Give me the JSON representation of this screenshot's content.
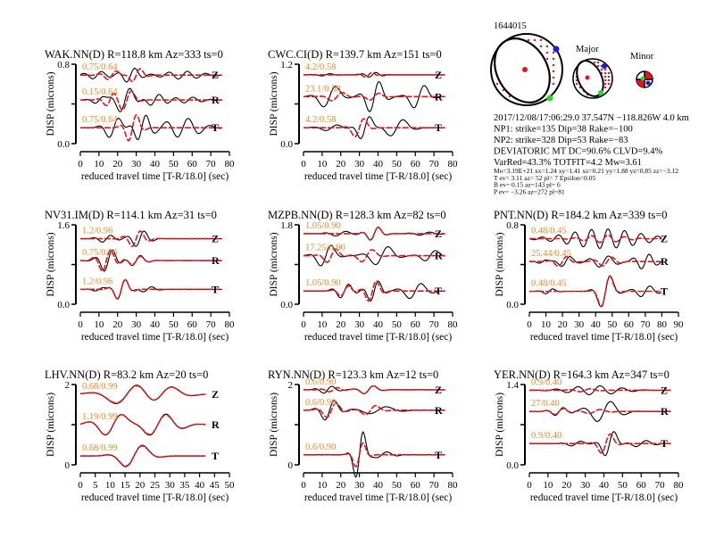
{
  "event": {
    "id": "1644015",
    "major_label": "Major",
    "minor_label": "Minor",
    "lines": [
      "2017/12/08/17:06:29.0 37.547N −118.826W 4.0 km",
      "NP1: strike=135 Dip=38 Rake=−100",
      "NP2: strike=328 Dip=53 Rake=−83",
      "DEVIATORIC MT DC=90.6% CLVD=9.4%",
      "VarRed=43.3% TOTFIT=4.2 Mw=3.61"
    ],
    "small_lines": [
      "Mo=3.19E+21 xx=1.24 xy=1.41 xz=0.21 yy=1.88 yz=0.85 zz=−3.12",
      "T ev=  3.11 az= 52 pl= 7 Epsilon=0.05",
      "B ev=  0.15 az=143 pl= 6",
      "P ev= −3.26 az=272 pl=81"
    ],
    "colors": {
      "tension": "#e8131b",
      "t_axis": "#1a1adf",
      "p_axis": "#22dd22"
    }
  },
  "chart_data": {
    "type": "line",
    "xlabel": "reduced travel time [T-R/18.0] (sec)",
    "ylabel": "DISP (microns)",
    "colors": {
      "observed": "#000000",
      "synthetic": "#e8131b",
      "shift_label": "#f0882a"
    },
    "panels": [
      {
        "title": "WAK.NN(D) R=118.8 km Az=333 ts=0",
        "ymax": 0.8,
        "ytick_labels": [
          "0.8",
          "0.0"
        ],
        "xmax": 80,
        "xticks": [
          "0",
          "10",
          "20",
          "30",
          "40",
          "50",
          "60",
          "70",
          "80"
        ],
        "tend": 76,
        "traces": [
          {
            "comp": "Z",
            "label": "0.75/0.64",
            "base": 0.69,
            "obs": [
              [
                9,
                0.04,
                10,
                8
              ],
              [
                27,
                0.08,
                10,
                6
              ],
              [
                55,
                0.04,
                10,
                14
              ]
            ],
            "syn": [
              [
                17,
                0.05,
                10,
                6
              ],
              [
                30,
                0.08,
                10,
                5
              ]
            ]
          },
          {
            "comp": "R",
            "label": "0.15/0.64",
            "base": 0.44,
            "obs": [
              [
                10,
                0.04,
                10,
                5
              ],
              [
                24,
                0.14,
                12,
                7
              ],
              [
                40,
                0.06,
                10,
                8
              ],
              [
                58,
                0.03,
                10,
                10
              ]
            ],
            "syn": [
              [
                16,
                0.07,
                10,
                5
              ],
              [
                25,
                0.12,
                12,
                5
              ]
            ]
          },
          {
            "comp": "T",
            "label": "0.75/0.64",
            "base": 0.16,
            "obs": [
              [
                18,
                0.12,
                12,
                6
              ],
              [
                33,
                0.14,
                10,
                6
              ],
              [
                55,
                0.1,
                12,
                12
              ]
            ],
            "syn": [
              [
                28,
                0.16,
                10,
                5
              ]
            ]
          }
        ]
      },
      {
        "title": "CWC.CI(D) R=139.7 km Az=151 ts=0",
        "ymax": 1.2,
        "ytick_labels": [
          "1.2",
          "0.0"
        ],
        "xmax": 80,
        "xticks": [
          "0",
          "10",
          "20",
          "30",
          "40",
          "50",
          "60",
          "70",
          "80"
        ],
        "tend": 76,
        "traces": [
          {
            "comp": "Z",
            "label": "4.2/0.58",
            "base": 1.04,
            "obs": [
              [
                12,
                0.02,
                10,
                6
              ],
              [
                37,
                0.04,
                8,
                6
              ]
            ],
            "syn": [
              [
                35,
                0.04,
                8,
                5
              ]
            ]
          },
          {
            "comp": "R",
            "label": "23.1/0.58",
            "base": 0.71,
            "obs": [
              [
                14,
                0.2,
                16,
                7
              ],
              [
                38,
                0.28,
                12,
                6
              ],
              [
                62,
                0.22,
                14,
                6
              ]
            ],
            "syn": [
              [
                18,
                0.08,
                14,
                6
              ],
              [
                38,
                0.07,
                12,
                5
              ]
            ]
          },
          {
            "comp": "T",
            "label": "4.2/0.58",
            "base": 0.24,
            "obs": [
              [
                15,
                0.05,
                14,
                8
              ],
              [
                33,
                0.22,
                12,
                5
              ],
              [
                50,
                0.15,
                16,
                8
              ]
            ],
            "syn": [
              [
                30,
                0.18,
                12,
                5
              ]
            ]
          }
        ]
      },
      {
        "title": "NV31.IM(D) R=114.1 km Az=31 ts=0",
        "ymax": 1.6,
        "ytick_labels": [
          "1.6",
          "0.0"
        ],
        "xmax": 80,
        "xticks": [
          "0",
          "10",
          "20",
          "30",
          "40",
          "50",
          "60",
          "70",
          "80"
        ],
        "tend": 76,
        "traces": [
          {
            "comp": "Z",
            "label": "1.2/0.96",
            "base": 1.32,
            "obs": [
              [
                14,
                0.08,
                10,
                6
              ],
              [
                32,
                0.18,
                10,
                6
              ]
            ],
            "syn": [
              [
                30,
                0.18,
                10,
                6
              ]
            ]
          },
          {
            "comp": "R",
            "label": "0.75/0.96",
            "base": 0.88,
            "obs": [
              [
                15,
                0.25,
                10,
                6
              ],
              [
                30,
                0.12,
                10,
                6
              ]
            ],
            "syn": [
              [
                14,
                0.25,
                10,
                6
              ],
              [
                30,
                0.1,
                10,
                6
              ]
            ]
          },
          {
            "comp": "T",
            "label": "1.2/0.96",
            "base": 0.3,
            "obs": [
              [
                10,
                0.04,
                10,
                5
              ],
              [
                22,
                0.24,
                10,
                5
              ],
              [
                36,
                0.06,
                10,
                6
              ]
            ],
            "syn": [
              [
                22,
                0.24,
                10,
                5
              ]
            ]
          }
        ]
      },
      {
        "title": "MZPB.NN(D) R=128.3 km Az=82 ts=0",
        "ymax": 1.8,
        "ytick_labels": [
          "1.8",
          "0.0"
        ],
        "xmax": 80,
        "xticks": [
          "0",
          "10",
          "20",
          "30",
          "40",
          "50",
          "60",
          "70",
          "80"
        ],
        "tend": 76,
        "traces": [
          {
            "comp": "Z",
            "label": "1.05/0.90",
            "base": 1.6,
            "obs": [
              [
                20,
                0.06,
                12,
                8
              ],
              [
                38,
                0.18,
                10,
                5
              ],
              [
                65,
                0.04,
                12,
                8
              ]
            ],
            "syn": [
              [
                38,
                0.18,
                10,
                5
              ]
            ]
          },
          {
            "comp": "R",
            "label": "17.25/0.90",
            "base": 1.1,
            "obs": [
              [
                12,
                0.3,
                14,
                6
              ],
              [
                42,
                0.25,
                16,
                8
              ],
              [
                68,
                0.15,
                14,
                6
              ]
            ],
            "syn": [
              [
                15,
                0.2,
                12,
                5
              ],
              [
                34,
                0.18,
                14,
                6
              ]
            ]
          },
          {
            "comp": "T",
            "label": "1.05/0.90",
            "base": 0.3,
            "obs": [
              [
                22,
                0.18,
                10,
                6
              ],
              [
                38,
                0.28,
                10,
                5
              ],
              [
                60,
                0.2,
                14,
                8
              ]
            ],
            "syn": [
              [
                22,
                0.14,
                10,
                5
              ],
              [
                37,
                0.28,
                10,
                5
              ]
            ]
          }
        ]
      },
      {
        "title": "PNT.NN(D) R=184.2 km Az=339 ts=0",
        "ymax": 0.8,
        "ytick_labels": [
          "0.8",
          "0.0"
        ],
        "xmax": 90,
        "xticks": [
          "0",
          "10",
          "20",
          "30",
          "40",
          "50",
          "60",
          "70",
          "80",
          "90"
        ],
        "tend": 80,
        "traces": [
          {
            "comp": "Z",
            "label": "0.48/0.45",
            "base": 0.66,
            "obs": [
              [
                45,
                0.1,
                10,
                28
              ]
            ],
            "syn": [
              [
                45,
                0.04,
                10,
                15
              ]
            ]
          },
          {
            "comp": "R",
            "label": "25.44/0.45",
            "base": 0.43,
            "obs": [
              [
                8,
                0.02,
                10,
                5
              ],
              [
                22,
                0.06,
                12,
                6
              ],
              [
                45,
                0.06,
                12,
                10
              ],
              [
                70,
                0.08,
                10,
                8
              ]
            ],
            "syn": [
              [
                20,
                0.06,
                12,
                6
              ],
              [
                47,
                0.05,
                12,
                8
              ]
            ]
          },
          {
            "comp": "T",
            "label": "0.48/0.45",
            "base": 0.13,
            "obs": [
              [
                12,
                0.03,
                10,
                5
              ],
              [
                46,
                0.2,
                14,
                6
              ],
              [
                70,
                0.06,
                12,
                8
              ]
            ],
            "syn": [
              [
                46,
                0.22,
                14,
                5
              ]
            ]
          }
        ]
      },
      {
        "title": "LHV.NN(D) R=83.2 km Az=20 ts=0",
        "ymax": 2,
        "ytick_labels": [
          "2",
          "0"
        ],
        "xmax": 50,
        "xticks": [
          "0",
          "5",
          "10",
          "15",
          "20",
          "25",
          "30",
          "35",
          "40",
          "45",
          "50"
        ],
        "tend": 42,
        "traces": [
          {
            "comp": "Z",
            "label": "0.68/0.99",
            "base": 1.76,
            "obs": [
              [
                16,
                0.3,
                19,
                9
              ],
              [
                27,
                0.25,
                16,
                8
              ]
            ],
            "syn": [
              [
                16,
                0.28,
                19,
                9
              ],
              [
                27,
                0.24,
                16,
                8
              ]
            ]
          },
          {
            "comp": "R",
            "label": "1.19/0.99",
            "base": 1.0,
            "obs": [
              [
                11,
                0.3,
                12,
                7
              ],
              [
                26,
                0.3,
                12,
                8
              ]
            ],
            "syn": [
              [
                11,
                0.3,
                12,
                7
              ],
              [
                26,
                0.28,
                12,
                8
              ]
            ]
          },
          {
            "comp": "T",
            "label": "0.68/0.99",
            "base": 0.22,
            "obs": [
              [
                18,
                0.35,
                14,
                6
              ]
            ],
            "syn": [
              [
                18,
                0.33,
                14,
                6
              ]
            ]
          }
        ]
      },
      {
        "title": "RYN.NN(D) R=123.3 km Az=12 ts=0",
        "ymax": 2,
        "ytick_labels": [
          "2",
          "0"
        ],
        "xmax": 80,
        "xticks": [
          "0",
          "10",
          "20",
          "30",
          "40",
          "50",
          "60",
          "70",
          "80"
        ],
        "tend": 76,
        "traces": [
          {
            "comp": "Z",
            "label": "0.6/0.90",
            "base": 1.87,
            "obs": [
              [
                13,
                0.1,
                10,
                6
              ],
              [
                35,
                0.12,
                12,
                6
              ]
            ],
            "syn": [
              [
                16,
                0.06,
                10,
                6
              ],
              [
                35,
                0.12,
                12,
                6
              ]
            ]
          },
          {
            "comp": "R",
            "label": "0.6/0.90",
            "base": 1.36,
            "obs": [
              [
                14,
                0.3,
                12,
                6
              ],
              [
                40,
                0.1,
                20,
                12
              ]
            ],
            "syn": [
              [
                15,
                0.22,
                12,
                6
              ],
              [
                36,
                0.15,
                14,
                6
              ]
            ]
          },
          {
            "comp": "T",
            "label": "0.6/0.90",
            "base": 0.25,
            "obs": [
              [
                30,
                0.75,
                10,
                4
              ],
              [
                42,
                0.08,
                12,
                8
              ]
            ],
            "syn": [
              [
                30,
                0.4,
                10,
                4
              ]
            ]
          }
        ]
      },
      {
        "title": "YER.NN(D) R=164.3 km Az=347 ts=0",
        "ymax": 1.4,
        "ytick_labels": [
          "1.4",
          "0.0"
        ],
        "xmax": 80,
        "xticks": [
          "0",
          "10",
          "20",
          "30",
          "40",
          "50",
          "60",
          "70",
          "80"
        ],
        "tend": 76,
        "traces": [
          {
            "comp": "Z",
            "label": "0.9/0.40",
            "base": 1.3,
            "obs": [
              [
                35,
                0.08,
                12,
                18
              ]
            ],
            "syn": [
              [
                30,
                0.03,
                12,
                8
              ]
            ]
          },
          {
            "comp": "R",
            "label": "27/0.40",
            "base": 0.93,
            "obs": [
              [
                16,
                0.08,
                10,
                6
              ],
              [
                40,
                0.2,
                16,
                10
              ]
            ],
            "syn": [
              [
                16,
                0.06,
                10,
                6
              ],
              [
                35,
                0.04,
                14,
                8
              ]
            ]
          },
          {
            "comp": "T",
            "label": "0.9/0.40",
            "base": 0.37,
            "obs": [
              [
                25,
                0.05,
                12,
                6
              ],
              [
                43,
                0.28,
                12,
                5
              ],
              [
                60,
                0.06,
                12,
                8
              ]
            ],
            "syn": [
              [
                41,
                0.22,
                12,
                5
              ]
            ]
          }
        ]
      }
    ]
  }
}
